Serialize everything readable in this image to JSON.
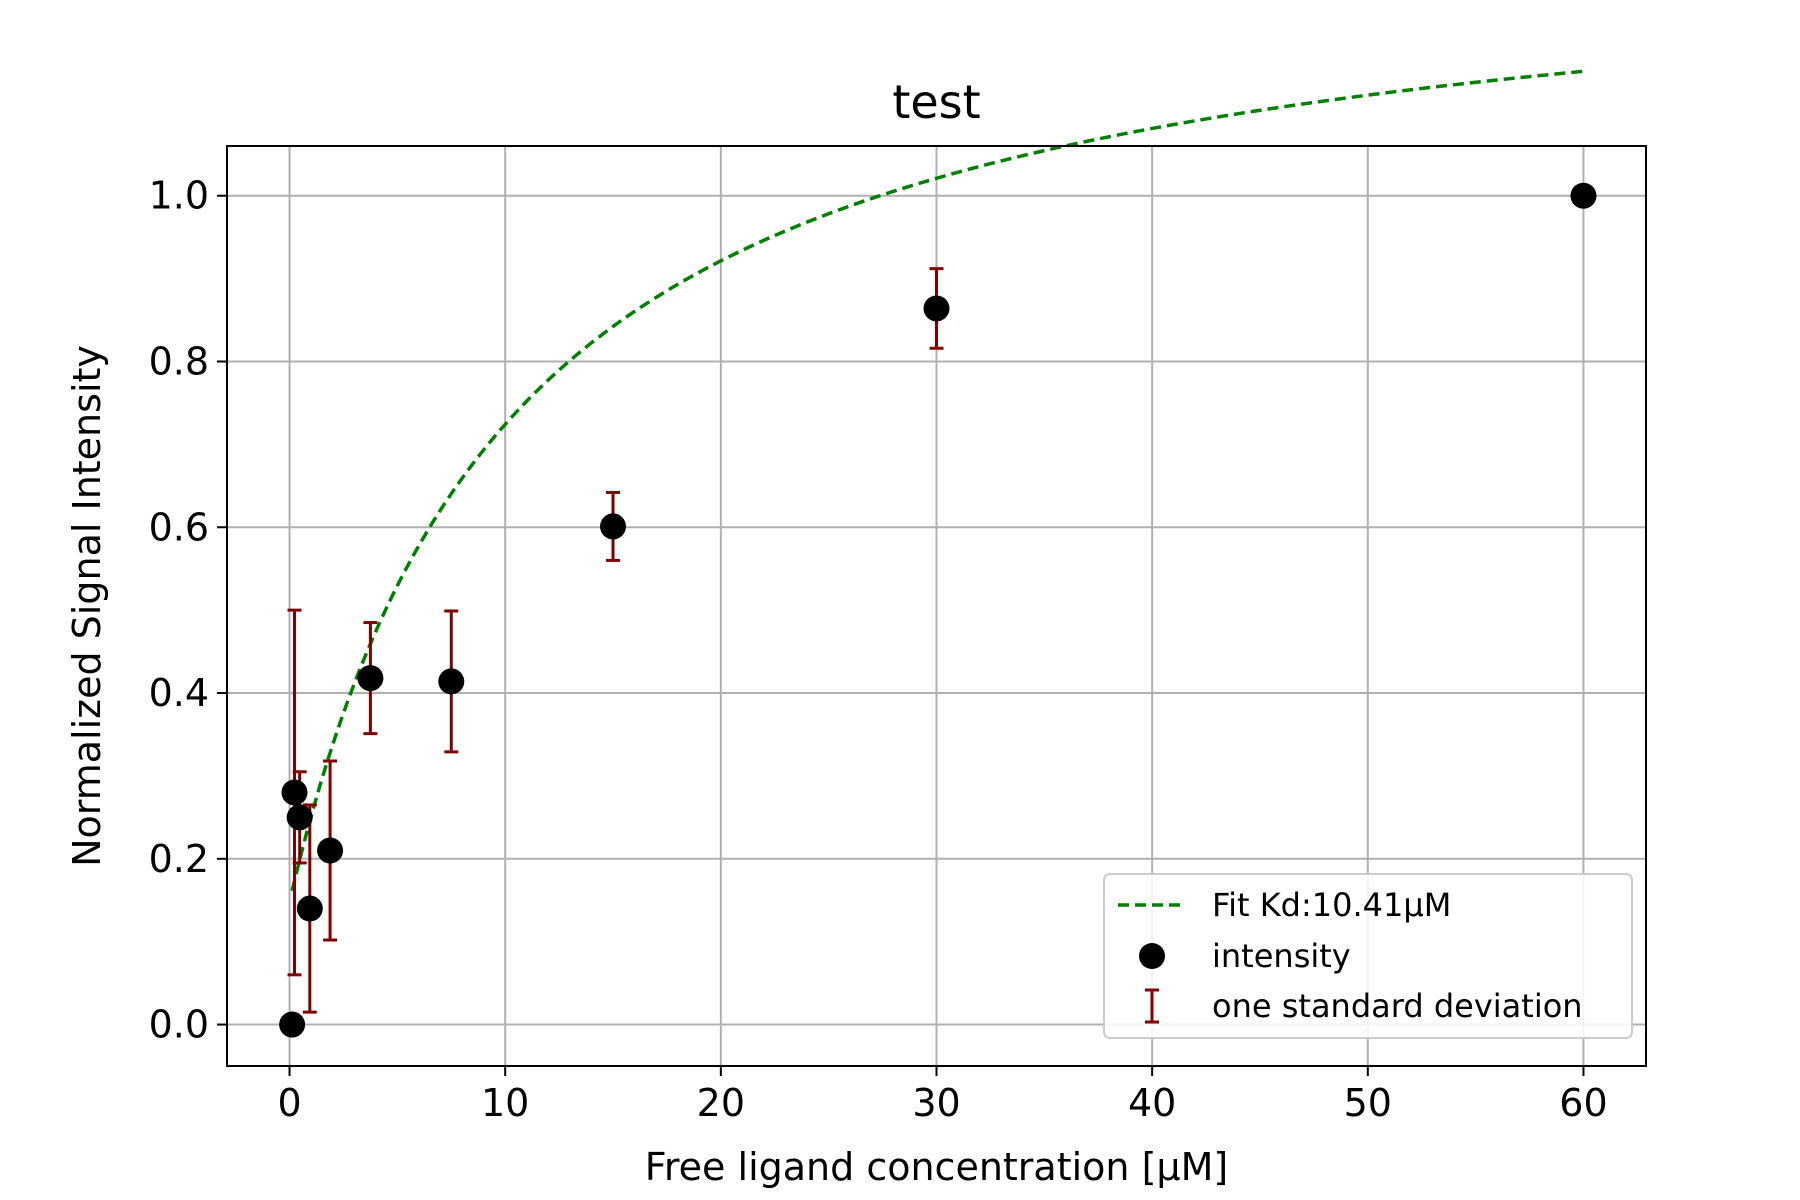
{
  "chart_data": {
    "type": "scatter",
    "title": "test",
    "xlabel": "Free ligand concentration [μM]",
    "ylabel": "Normalized Signal Intensity",
    "xlim": [
      -2.9,
      62.9
    ],
    "ylim": [
      -0.05,
      1.06
    ],
    "xticks": [
      0,
      10,
      20,
      30,
      40,
      50,
      60
    ],
    "xtick_labels": [
      "0",
      "10",
      "20",
      "30",
      "40",
      "50",
      "60"
    ],
    "yticks": [
      0.0,
      0.2,
      0.4,
      0.6,
      0.8,
      1.0
    ],
    "ytick_labels": [
      "0.0",
      "0.2",
      "0.4",
      "0.6",
      "0.8",
      "1.0"
    ],
    "grid": true,
    "legend_position": "lower right",
    "colors": {
      "points": "#000000",
      "errorbars": "#800000",
      "fit": "#008000",
      "grid": "#b0b0b0"
    },
    "points": [
      {
        "x": 0.12,
        "y": 0.0,
        "err": 0.0
      },
      {
        "x": 0.23,
        "y": 0.28,
        "err": 0.22
      },
      {
        "x": 0.47,
        "y": 0.25,
        "err": 0.055
      },
      {
        "x": 0.94,
        "y": 0.14,
        "err": 0.125
      },
      {
        "x": 1.88,
        "y": 0.21,
        "err": 0.108
      },
      {
        "x": 3.75,
        "y": 0.418,
        "err": 0.067
      },
      {
        "x": 7.5,
        "y": 0.414,
        "err": 0.085
      },
      {
        "x": 15.0,
        "y": 0.601,
        "err": 0.041
      },
      {
        "x": 30.0,
        "y": 0.864,
        "err": 0.048
      },
      {
        "x": 60.0,
        "y": 1.0,
        "err": 0.0
      }
    ],
    "fit": {
      "kd": 10.41,
      "bmax": 1.176,
      "offset": 0.148,
      "x_start": 0.12,
      "x_end": 60.0
    },
    "legend": [
      {
        "type": "line",
        "label": "Fit Kd:10.41μM"
      },
      {
        "type": "marker",
        "label": "intensity"
      },
      {
        "type": "errorbar",
        "label": "one standard deviation"
      }
    ]
  }
}
